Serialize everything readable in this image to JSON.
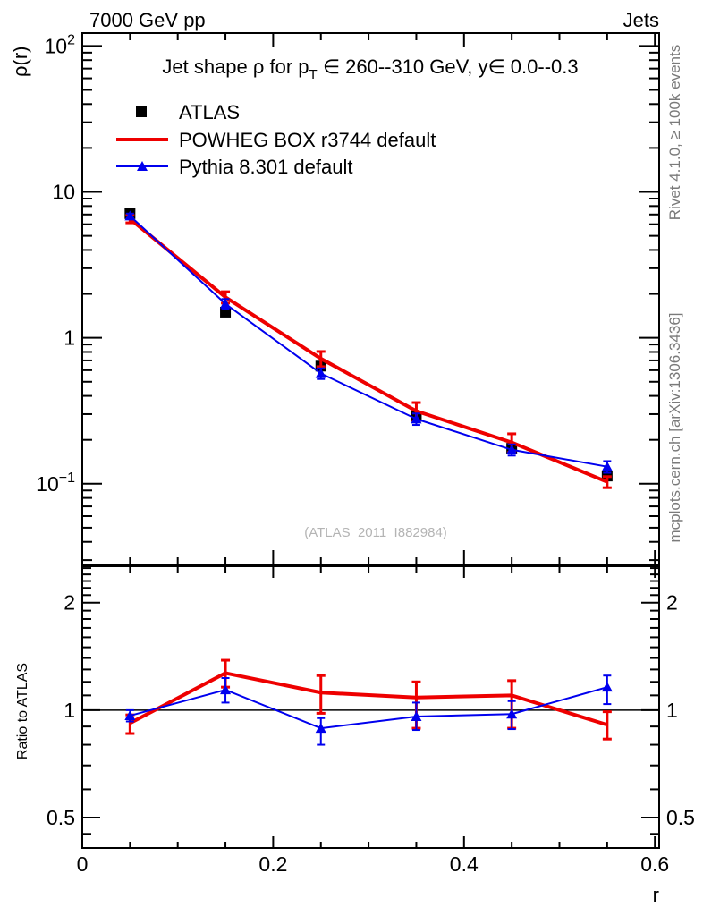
{
  "header": {
    "left": "7000 GeV pp",
    "right": "Jets"
  },
  "main_panel": {
    "title": "Jet shape ρ for pT ∈ 260--310 GeV, y∈ 0.0--0.3",
    "title_parts": {
      "pre": "Jet shape ρ for p",
      "sub": "T",
      "post": " ∈ 260--310 GeV, y∈ 0.0--0.3"
    },
    "ylabel": "ρ(r)",
    "watermark": "(ATLAS_2011_I882984)",
    "yticks": [
      {
        "mantissa": "10",
        "exp": "2",
        "value": 100
      },
      {
        "mantissa": "10",
        "exp": "",
        "value": 10
      },
      {
        "mantissa": "1",
        "exp": "",
        "value": 1
      },
      {
        "mantissa": "10",
        "exp": "−1",
        "value": 0.1
      }
    ]
  },
  "ratio_panel": {
    "ylabel": "Ratio to ATLAS",
    "yticks": [
      {
        "label": "2",
        "value": 2
      },
      {
        "label": "1",
        "value": 1
      },
      {
        "label": "0.5",
        "value": 0.5
      }
    ]
  },
  "xaxis": {
    "label": "r",
    "ticks": [
      {
        "label": "0",
        "value": 0
      },
      {
        "label": "0.2",
        "value": 0.2
      },
      {
        "label": "0.4",
        "value": 0.4
      },
      {
        "label": "0.6",
        "value": 0.6
      }
    ]
  },
  "right_margin": {
    "top_text": "Rivet 4.1.0, ≥ 100k events",
    "bottom_text": "mcplots.cern.ch [arXiv:1306.3436]"
  },
  "legend": {
    "items": [
      {
        "label": "ATLAS",
        "marker": "square",
        "color": "#000000"
      },
      {
        "label": "POWHEG BOX r3744 default",
        "marker": "line",
        "color": "#ee0000"
      },
      {
        "label": "Pythia 8.301 default",
        "marker": "line-triangle",
        "color": "#0000ee"
      }
    ]
  },
  "colors": {
    "atlas": "#000000",
    "powheg": "#ee0000",
    "pythia": "#0000ee",
    "margin_text": "#7a7a7a",
    "watermark": "#b4b4b4"
  },
  "chart_data": [
    {
      "type": "line",
      "panel": "main",
      "title": "Jet shape ρ for pT ∈ 260--310 GeV, y∈ 0.0--0.3",
      "xlabel": "r",
      "ylabel": "ρ(r)",
      "yscale": "log",
      "xlim": [
        0,
        0.6045
      ],
      "ylim": [
        0.028,
        122.5
      ],
      "x": [
        0.05,
        0.15,
        0.25,
        0.35,
        0.45,
        0.55
      ],
      "series": [
        {
          "name": "ATLAS",
          "style": "scatter",
          "marker": "square",
          "color": "#000000",
          "values": [
            7.1,
            1.5,
            0.64,
            0.29,
            0.175,
            0.113
          ],
          "errors": [
            0.12,
            0.03,
            0.013,
            0.006,
            0.004,
            0.003
          ]
        },
        {
          "name": "POWHEG BOX r3744 default",
          "style": "line",
          "marker": "none",
          "color": "#ee0000",
          "values": [
            6.53,
            1.9,
            0.72,
            0.315,
            0.192,
            0.103
          ],
          "errors": [
            0.39,
            0.17,
            0.086,
            0.045,
            0.028,
            0.009
          ]
        },
        {
          "name": "Pythia 8.301 default",
          "style": "line",
          "marker": "triangle",
          "color": "#0000ee",
          "values": [
            6.85,
            1.71,
            0.57,
            0.278,
            0.171,
            0.131
          ],
          "errors": [
            0.25,
            0.135,
            0.048,
            0.025,
            0.015,
            0.012
          ]
        }
      ]
    },
    {
      "type": "line",
      "panel": "ratio",
      "ylabel": "Ratio to ATLAS",
      "yscale": "log",
      "ylim": [
        0.411,
        2.53
      ],
      "reference_line": 1,
      "x": [
        0.05,
        0.15,
        0.25,
        0.35,
        0.45,
        0.55
      ],
      "series": [
        {
          "name": "POWHEG BOX r3744 default / ATLAS",
          "style": "line",
          "marker": "none",
          "color": "#ee0000",
          "values": [
            0.92,
            1.27,
            1.12,
            1.085,
            1.1,
            0.91
          ],
          "err_lo": [
            0.86,
            1.16,
            0.98,
            0.89,
            0.89,
            0.83
          ],
          "err_hi": [
            0.97,
            1.38,
            1.25,
            1.2,
            1.21,
            0.99
          ]
        },
        {
          "name": "Pythia 8.301 default / ATLAS",
          "style": "line",
          "marker": "triangle",
          "color": "#0000ee",
          "values": [
            0.965,
            1.14,
            0.89,
            0.96,
            0.975,
            1.16
          ],
          "err_lo": [
            0.93,
            1.05,
            0.8,
            0.88,
            0.885,
            1.04
          ],
          "err_hi": [
            1.0,
            1.23,
            0.95,
            1.05,
            1.06,
            1.25
          ]
        }
      ]
    }
  ]
}
